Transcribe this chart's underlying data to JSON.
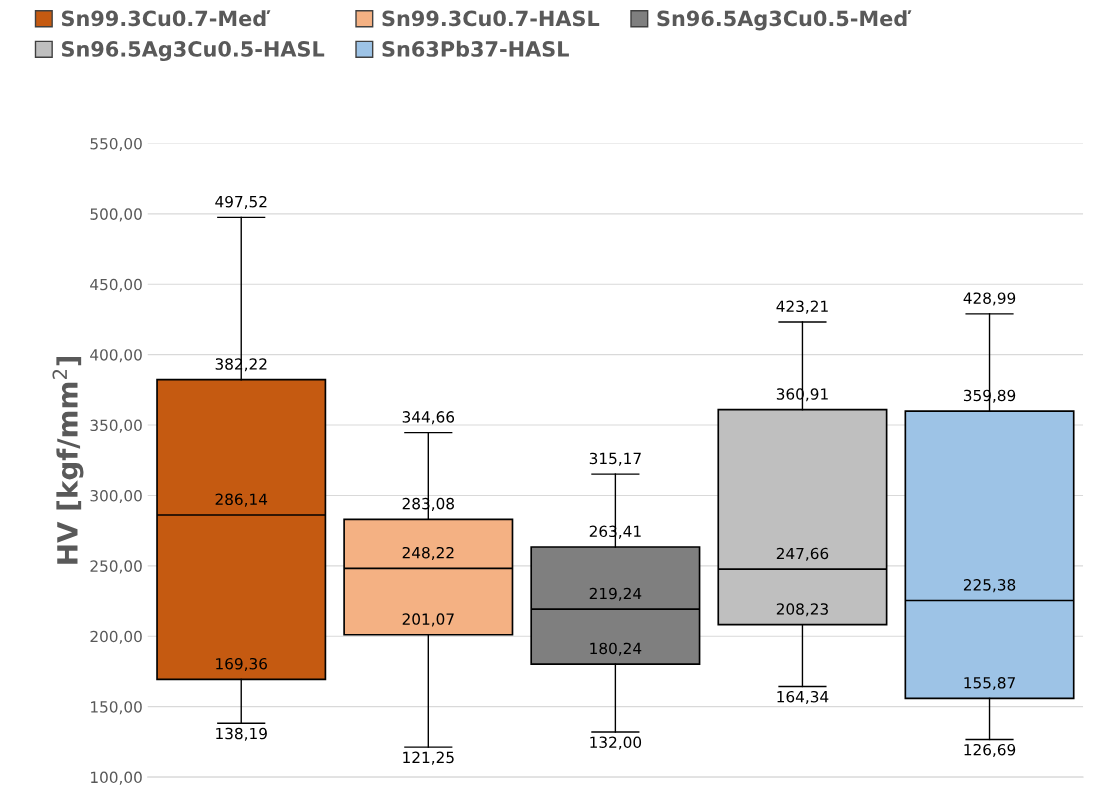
{
  "chart_data": {
    "type": "box",
    "ylabel": "HV [kgf/mm$^{2}$]",
    "categories": [
      null,
      null,
      null,
      null,
      null
    ],
    "ylim": [
      100,
      550
    ],
    "yticks": [
      {
        "value": 100,
        "label": "100,00"
      },
      {
        "value": 150,
        "label": "150,00"
      },
      {
        "value": 200,
        "label": "200,00"
      },
      {
        "value": 250,
        "label": "250,00"
      },
      {
        "value": 300,
        "label": "300,00"
      },
      {
        "value": 350,
        "label": "350,00"
      },
      {
        "value": 400,
        "label": "400,00"
      },
      {
        "value": 450,
        "label": "450,00"
      },
      {
        "value": 500,
        "label": "500,00"
      },
      {
        "value": 550,
        "label": "550,00"
      }
    ],
    "grid": "y",
    "legend": "top",
    "tick_labels": "y",
    "series": [
      {
        "name": "Sn99.3Cu0.7-Meď",
        "color": "#c55a11",
        "boxes": [
          {
            "low": 138.19,
            "q1": 169.36,
            "median": 286.14,
            "q3": 382.22,
            "high": 497.52
          },
          null,
          null,
          null,
          null
        ],
        "value_labels": [
          [
            "138,19",
            "169,36",
            "286,14",
            "382,22",
            "497,52"
          ],
          null,
          null,
          null,
          null
        ]
      },
      {
        "name": "Sn99.3Cu0.7-HASL",
        "color": "#f4b183",
        "boxes": [
          null,
          {
            "low": 121.25,
            "q1": 201.07,
            "median": 248.22,
            "q3": 283.08,
            "high": 344.66
          },
          null,
          null,
          null
        ],
        "value_labels": [
          null,
          [
            "121,25",
            "201,07",
            "248,22",
            "283,08",
            "344,66"
          ],
          null,
          null,
          null
        ]
      },
      {
        "name": "Sn96.5Ag3Cu0.5-Meď",
        "color": "#7f7f7f",
        "boxes": [
          null,
          null,
          {
            "low": 132.0,
            "q1": 180.24,
            "median": 219.24,
            "q3": 263.41,
            "high": 315.17
          },
          null,
          null
        ],
        "value_labels": [
          null,
          null,
          [
            "132,00",
            "180,24",
            "219,24",
            "263,41",
            "315,17"
          ],
          null,
          null
        ]
      },
      {
        "name": "Sn96.5Ag3Cu0.5-HASL",
        "color": "#bfbfbf",
        "boxes": [
          null,
          null,
          null,
          {
            "low": 164.34,
            "q1": 208.23,
            "median": 247.66,
            "q3": 360.91,
            "high": 423.21
          },
          null
        ],
        "value_labels": [
          null,
          null,
          null,
          [
            "164,34",
            "208,23",
            "247,66",
            "360,91",
            "423,21"
          ],
          null
        ]
      },
      {
        "name": "Sn63Pb37-HASL",
        "color": "#9dc3e6",
        "boxes": [
          null,
          null,
          null,
          null,
          {
            "low": 126.69,
            "q1": 155.87,
            "median": 225.38,
            "q3": 359.89,
            "high": 428.99
          }
        ],
        "value_labels": [
          null,
          null,
          null,
          null,
          [
            "126,69",
            "155,87",
            "225,38",
            "359,89",
            "428,99"
          ]
        ]
      }
    ]
  }
}
